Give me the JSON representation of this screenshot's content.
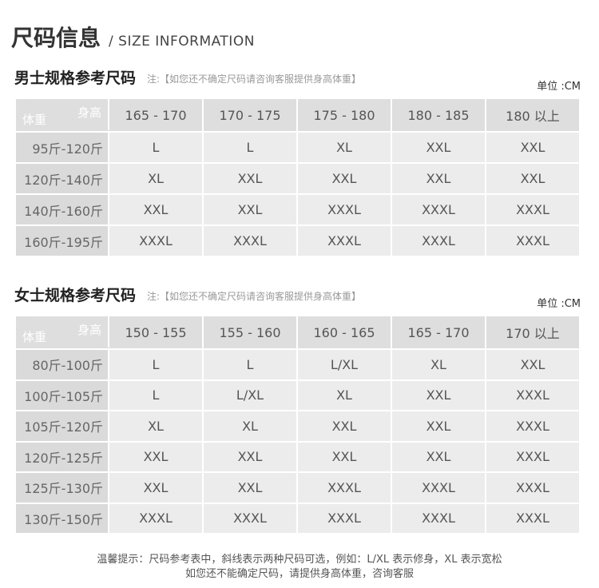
{
  "title": {
    "zh": "尺码信息",
    "en": "/ SIZE INFORMATION"
  },
  "men": {
    "heading": "男士规格参考尺码",
    "note": "注:【如您还不确定尺码请咨询客服提供身高体重】",
    "unit": "单位 :CM",
    "corner_height": "身高",
    "corner_weight": "体重",
    "columns": [
      "165 - 170",
      "170 - 175",
      "175 - 180",
      "180 - 185",
      "180 以上"
    ],
    "rows": [
      {
        "weight": "95斤-120斤",
        "sizes": [
          "L",
          "L",
          "XL",
          "XXL",
          "XXL"
        ]
      },
      {
        "weight": "120斤-140斤",
        "sizes": [
          "XL",
          "XXL",
          "XXL",
          "XXL",
          "XXL"
        ]
      },
      {
        "weight": "140斤-160斤",
        "sizes": [
          "XXL",
          "XXL",
          "XXXL",
          "XXXL",
          "XXXL"
        ]
      },
      {
        "weight": "160斤-195斤",
        "sizes": [
          "XXXL",
          "XXXL",
          "XXXL",
          "XXXL",
          "XXXL"
        ]
      }
    ]
  },
  "women": {
    "heading": "女士规格参考尺码",
    "note": "注:【如您还不确定尺码请咨询客服提供身高体重】",
    "unit": "单位 :CM",
    "corner_height": "身高",
    "corner_weight": "体重",
    "columns": [
      "150 - 155",
      "155 - 160",
      "160 - 165",
      "165 - 170",
      "170 以上"
    ],
    "rows": [
      {
        "weight": "80斤-100斤",
        "sizes": [
          "L",
          "L",
          "L/XL",
          "XL",
          "XXL"
        ]
      },
      {
        "weight": "100斤-105斤",
        "sizes": [
          "L",
          "L/XL",
          "XL",
          "XXL",
          "XXXL"
        ]
      },
      {
        "weight": "105斤-120斤",
        "sizes": [
          "XL",
          "XL",
          "XXL",
          "XXL",
          "XXXL"
        ]
      },
      {
        "weight": "120斤-125斤",
        "sizes": [
          "XXL",
          "XXL",
          "XXL",
          "XXL",
          "XXXL"
        ]
      },
      {
        "weight": "125斤-130斤",
        "sizes": [
          "XXL",
          "XXL",
          "XXXL",
          "XXXL",
          "XXXL"
        ]
      },
      {
        "weight": "130斤-150斤",
        "sizes": [
          "XXXL",
          "XXXL",
          "XXXL",
          "XXXL",
          "XXXL"
        ]
      }
    ]
  },
  "footer": {
    "line1": "温馨提示：尺码参考表中，斜线表示两种尺码可选，例如：L/XL 表示修身，XL 表示宽松",
    "line2": "如您还不能确定尺码，请提供身高体重，咨询客服"
  }
}
